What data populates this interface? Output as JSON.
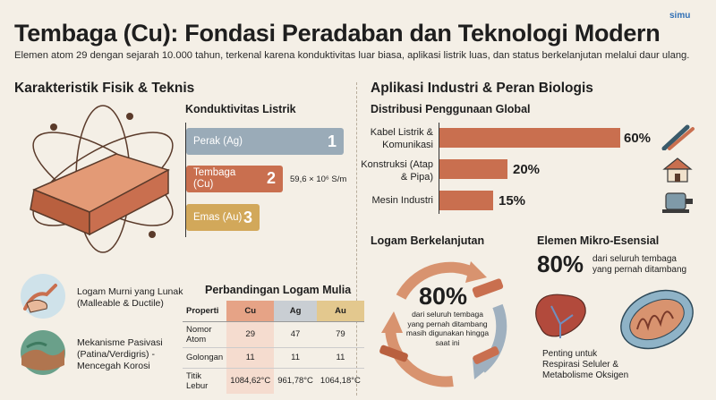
{
  "header": {
    "title": "Tembaga (Cu): Fondasi Peradaban dan Teknologi Modern",
    "subtitle": "Elemen atom 29 dengan sejarah 10.000 tahun, terkenal karena konduktivitas luar biasa, aplikasi listrik luas, dan status berkelanjutan melalui daur ulang.",
    "logo": "simu"
  },
  "left": {
    "heading": "Karakteristik Fisik & Teknis",
    "conductivity": {
      "heading": "Konduktivitas Listrik",
      "bars": [
        {
          "label": "Perak (Ag)",
          "rank": "1",
          "color": "#9aabb8"
        },
        {
          "label": "Tembaga (Cu)",
          "rank": "2",
          "color": "#c96f4f"
        },
        {
          "label": "Emas (Au)",
          "rank": "3",
          "color": "#d2a85a"
        }
      ],
      "cu_value": "59,6 × 10⁶ S/m"
    },
    "features": [
      {
        "text": "Logam Murni yang Lunak (Malleable & Ductile)",
        "icon": "hand-bending-metal-icon"
      },
      {
        "text": "Mekanisme Pasivasi (Patina/Verdigris) - Mencegah Korosi",
        "icon": "patina-surface-icon"
      }
    ],
    "table": {
      "heading": "Perbandingan Logam Mulia",
      "headers": [
        "Properti",
        "Cu",
        "Ag",
        "Au"
      ],
      "rows": [
        [
          "Nomor Atom",
          "29",
          "47",
          "79"
        ],
        [
          "Golongan",
          "11",
          "11",
          "11"
        ],
        [
          "Titik Lebur",
          "1084,62°C",
          "961,78°C",
          "1064,18°C"
        ]
      ]
    }
  },
  "right": {
    "heading": "Aplikasi Industri & Peran Biologis",
    "distribution": {
      "heading": "Distribusi Penggunaan Global",
      "items": [
        {
          "label": "Kabel Listrik & Komunikasi",
          "value": 60,
          "display": "60%",
          "icon": "cable-icon"
        },
        {
          "label": "Konstruksi (Atap & Pipa)",
          "value": 20,
          "display": "20%",
          "icon": "house-icon"
        },
        {
          "label": "Mesin Industri",
          "value": 15,
          "display": "15%",
          "icon": "motor-icon"
        }
      ]
    },
    "recycling": {
      "heading": "Logam Berkelanjutan",
      "big": "80%",
      "text": "dari seluruh tembaga yang pernah ditambang masih digunakan hingga saat ini"
    },
    "micro": {
      "heading": "Elemen Mikro-Esensial",
      "big": "80%",
      "text": "dari seluruh tembaga yang pernah ditambang",
      "caption": "Penting untuk Respirasi Seluler & Metabolisme Oksigen"
    }
  }
}
